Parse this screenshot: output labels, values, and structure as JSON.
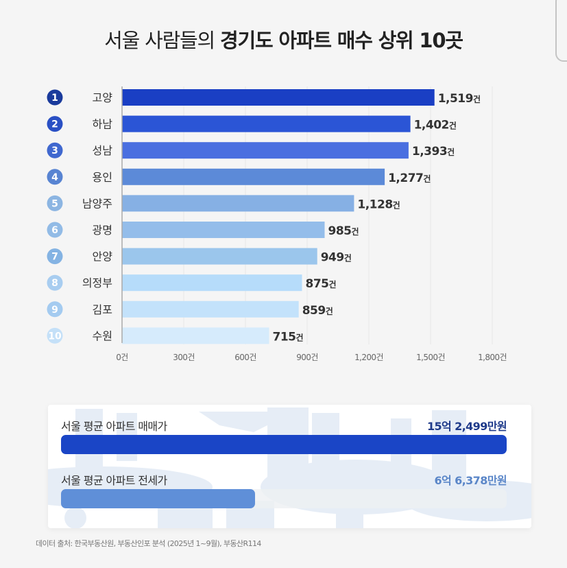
{
  "title": {
    "regular": "서울 사람들의",
    "bold": "경기도 아파트 매수 상위 10곳"
  },
  "chart_data": {
    "type": "bar",
    "orientation": "horizontal",
    "title": "서울 사람들의 경기도 아파트 매수 상위 10곳",
    "xlabel": "",
    "ylabel": "",
    "unit": "건",
    "xlim": [
      0,
      1800
    ],
    "grid": true,
    "ranks": [
      "1",
      "2",
      "3",
      "4",
      "5",
      "6",
      "7",
      "8",
      "9",
      "10"
    ],
    "categories": [
      "고양",
      "하남",
      "성남",
      "용인",
      "남양주",
      "광명",
      "안양",
      "의정부",
      "김포",
      "수원"
    ],
    "values": [
      1519,
      1402,
      1393,
      1277,
      1128,
      985,
      949,
      875,
      859,
      715
    ],
    "value_labels": [
      "1,519",
      "1,402",
      "1,393",
      "1,277",
      "1,128",
      "985",
      "949",
      "875",
      "859",
      "715"
    ],
    "ticks": [
      0,
      300,
      600,
      900,
      1200,
      1500,
      1800
    ],
    "tick_labels": [
      "0건",
      "300건",
      "600건",
      "900건",
      "1,200건",
      "1,500건",
      "1,800건"
    ],
    "colors": [
      "#1a3fc4",
      "#2b55d6",
      "#4a6fe0",
      "#5c8ad8",
      "#86b0e4",
      "#94bdea",
      "#9bc6ec",
      "#b6dcfa",
      "#c3e2fb",
      "#d6ebfc"
    ],
    "rank_colors": [
      "#1a3b9c",
      "#2a50c4",
      "#4068cf",
      "#5884d2",
      "#8cb5e2",
      "#92bbe6",
      "#84b3e3",
      "#a8cdf0",
      "#a4cbf0",
      "#c4e0f8"
    ]
  },
  "comparison": {
    "items": [
      {
        "label": "서울 평균 아파트 매매가",
        "value_text": "15억 2,499만원",
        "amount_manwon": 152499,
        "color": "#1a45c6",
        "text_color": "#1e3a8a"
      },
      {
        "label": "서울 평균 아파트 전세가",
        "value_text": "6억 6,378만원",
        "amount_manwon": 66378,
        "color": "#5f8fd8",
        "text_color": "#5a86c8"
      }
    ]
  },
  "source": "데이터 출처: 한국부동산원, 부동산인포 분석 (2025년 1~9월), 부동산R114"
}
